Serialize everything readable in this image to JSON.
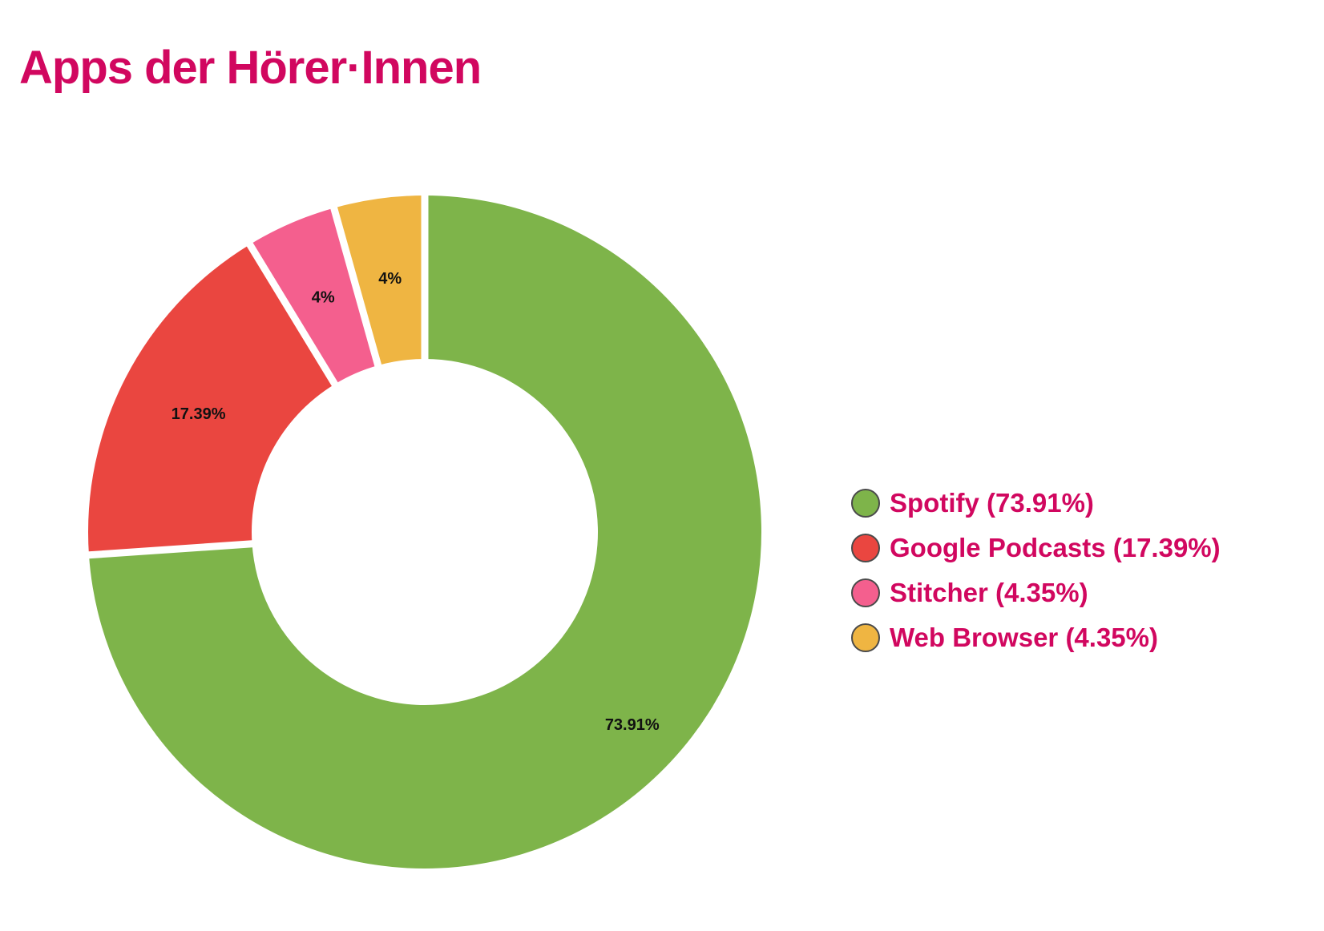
{
  "title": "Apps der Hörer·Innen",
  "colors": {
    "accent": "#d1075f"
  },
  "chart_data": {
    "type": "pie",
    "title": "Apps der Hörer·Innen",
    "donut": true,
    "legend_position": "right",
    "series": [
      {
        "name": "Spotify",
        "value": 73.91,
        "color": "#7eb44a",
        "slice_label": "73.91%",
        "legend_label": "Spotify (73.91%)"
      },
      {
        "name": "Google Podcasts",
        "value": 17.39,
        "color": "#ea4640",
        "slice_label": "17.39%",
        "legend_label": "Google Podcasts (17.39%)"
      },
      {
        "name": "Stitcher",
        "value": 4.35,
        "color": "#f45f8e",
        "slice_label": "4%",
        "legend_label": "Stitcher (4.35%)"
      },
      {
        "name": "Web Browser",
        "value": 4.35,
        "color": "#efb542",
        "slice_label": "4%",
        "legend_label": "Web Browser (4.35%)"
      }
    ]
  }
}
